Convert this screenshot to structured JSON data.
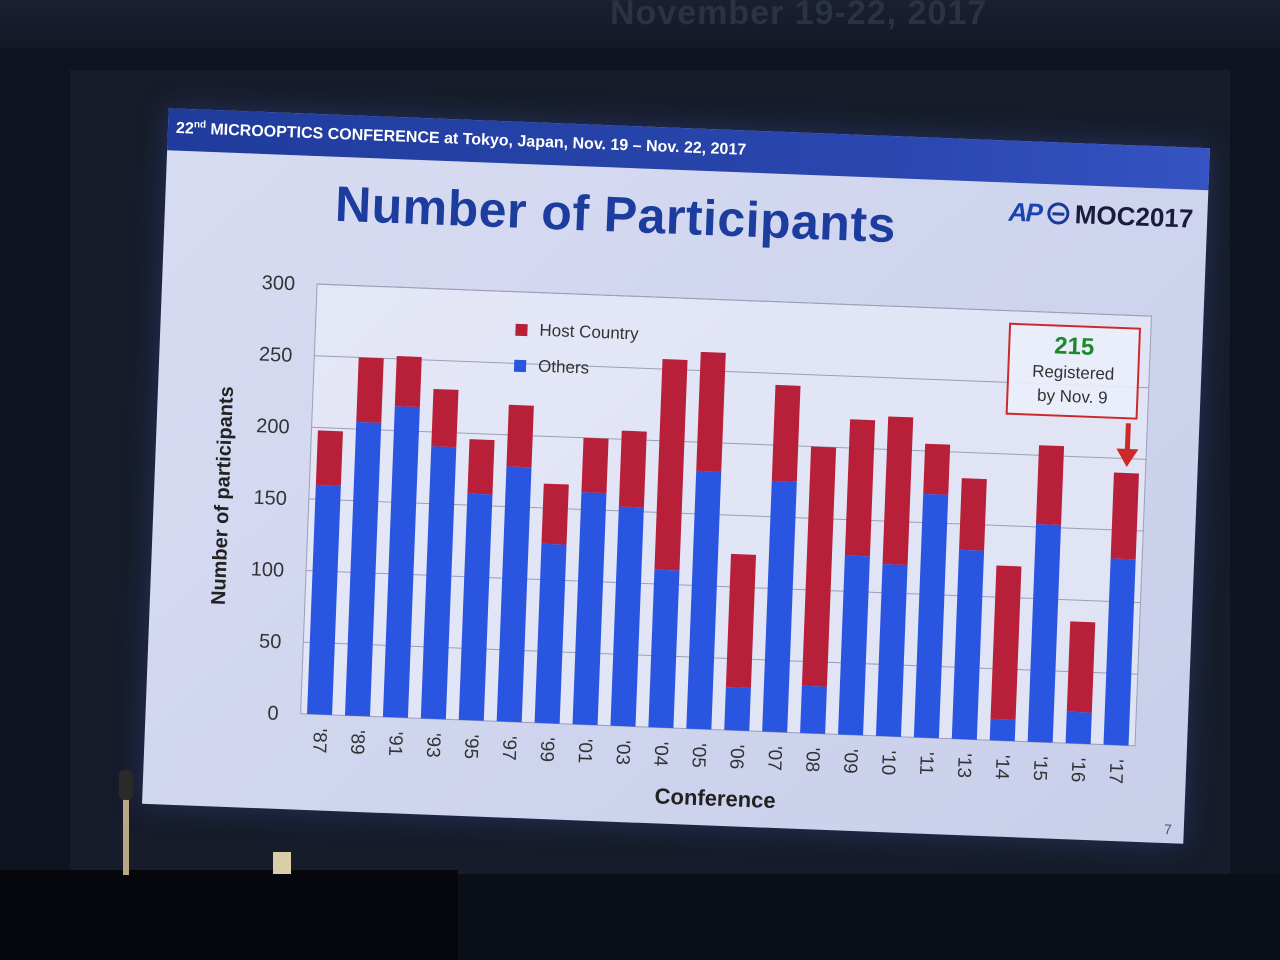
{
  "banner": {
    "text": "November 19-22, 2017"
  },
  "slide": {
    "header_ordinal": "22",
    "header_ordinal_suffix": "nd",
    "header_text": " MICROOPTICS CONFERENCE at Tokyo, Japan, Nov. 19 – Nov. 22, 2017",
    "logo_mark": "AP",
    "logo_text": "MOC2017",
    "title": "Number of Participants",
    "page_number": "7"
  },
  "callout": {
    "value": "215",
    "line1": "Registered",
    "line2": "by Nov. 9"
  },
  "colors": {
    "host": "#b8203a",
    "others": "#2a55e0",
    "callout_border": "#cc2a2a",
    "callout_value": "#1a8a2a"
  },
  "chart_data": {
    "type": "bar",
    "stacked": true,
    "xlabel": "Conference",
    "ylabel": "Number of participants",
    "ylim": [
      0,
      300
    ],
    "yticks": [
      0,
      50,
      100,
      150,
      200,
      250,
      300
    ],
    "grid": true,
    "legend_position": "top-left",
    "categories": [
      "'87",
      "'89",
      "'91",
      "'93",
      "'95",
      "'97",
      "'99",
      "'01",
      "'03",
      "'04",
      "'05",
      "'06",
      "'07",
      "'08",
      "'09",
      "'10",
      "'11",
      "'13",
      "'14",
      "'15",
      "'16",
      "'17"
    ],
    "series": [
      {
        "name": "Others",
        "values": [
          160,
          205,
          217,
          190,
          158,
          178,
          125,
          162,
          153,
          110,
          180,
          30,
          175,
          33,
          125,
          120,
          170,
          132,
          15,
          152,
          22,
          130
        ]
      },
      {
        "name": "Host Country",
        "values": [
          38,
          45,
          35,
          40,
          38,
          43,
          42,
          38,
          53,
          147,
          83,
          93,
          67,
          167,
          95,
          103,
          35,
          50,
          107,
          55,
          63,
          60
        ]
      }
    ]
  }
}
